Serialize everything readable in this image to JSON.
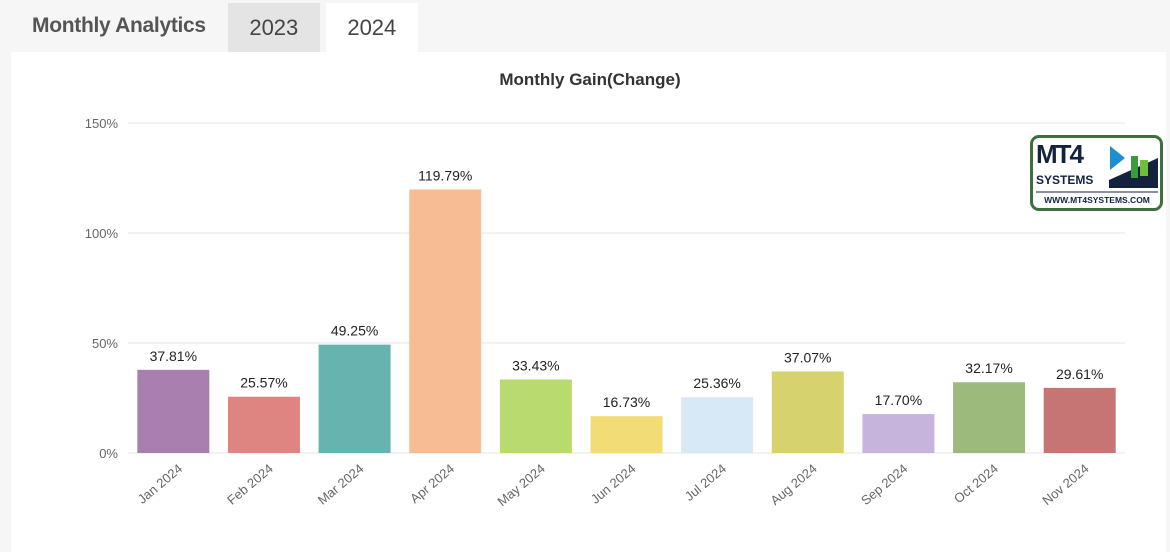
{
  "header": {
    "title": "Monthly Analytics",
    "tabs": [
      {
        "label": "2023",
        "active": false
      },
      {
        "label": "2024",
        "active": true
      }
    ]
  },
  "chart_data": {
    "type": "bar",
    "title": "Monthly Gain(Change)",
    "categories": [
      "Jan 2024",
      "Feb 2024",
      "Mar 2024",
      "Apr 2024",
      "May 2024",
      "Jun 2024",
      "Jul 2024",
      "Aug 2024",
      "Sep 2024",
      "Oct 2024",
      "Nov 2024"
    ],
    "values": [
      37.81,
      25.57,
      49.25,
      119.79,
      33.43,
      16.73,
      25.36,
      37.07,
      17.7,
      32.17,
      29.61
    ],
    "data_labels": [
      "37.81%",
      "25.57%",
      "49.25%",
      "119.79%",
      "33.43%",
      "16.73%",
      "25.36%",
      "37.07%",
      "17.70%",
      "32.17%",
      "29.61%"
    ],
    "colors": [
      "#a97fb0",
      "#de8582",
      "#67b3b0",
      "#f7bc94",
      "#b8da6f",
      "#f2dc76",
      "#d7e8f7",
      "#d6d36e",
      "#c7b4dc",
      "#9dba7d",
      "#c77474"
    ],
    "yticks": [
      "0%",
      "50%",
      "100%",
      "150%"
    ],
    "ylim": [
      0,
      150
    ],
    "grid": true,
    "xlabel": "",
    "ylabel": ""
  },
  "logo": {
    "text": "MT4",
    "sub": "SYSTEMS",
    "url": "WWW.MT4SYSTEMS.COM"
  }
}
